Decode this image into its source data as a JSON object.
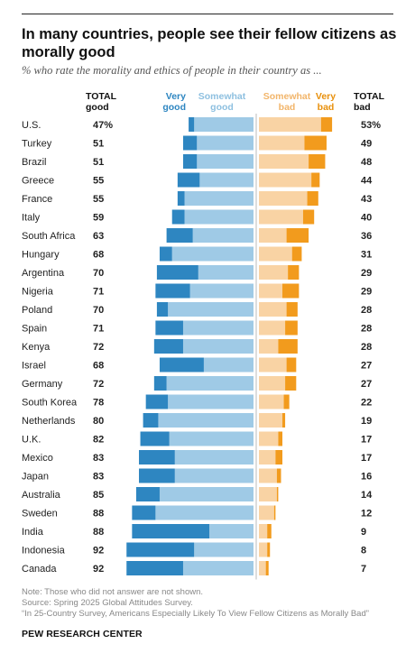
{
  "title": "In many countries, people see their fellow citizens as morally good",
  "subtitle": "% who rate the morality and ethics of people in their country as ...",
  "headers": {
    "total_good": [
      "TOTAL",
      "good"
    ],
    "very_good": [
      "Very",
      "good"
    ],
    "somewhat_good": [
      "Somewhat",
      "good"
    ],
    "somewhat_bad": [
      "Somewhat",
      "bad"
    ],
    "very_bad": [
      "Very",
      "bad"
    ],
    "total_bad": [
      "TOTAL",
      "bad"
    ]
  },
  "colors": {
    "very_good": "#2e86c1",
    "somewhat_good": "#9fcae6",
    "somewhat_bad": "#f9d3a4",
    "very_bad": "#f29b1d",
    "very_good_text": "#2e86c1",
    "somewhat_good_text": "#8ec0e0",
    "somewhat_bad_text": "#f2b56a",
    "very_bad_text": "#e8900c"
  },
  "chart_data": {
    "type": "bar",
    "orientation": "horizontal-diverging",
    "categories": [
      "U.S.",
      "Turkey",
      "Brazil",
      "Greece",
      "France",
      "Italy",
      "South Africa",
      "Hungary",
      "Argentina",
      "Nigeria",
      "Poland",
      "Spain",
      "Kenya",
      "Israel",
      "Germany",
      "South Korea",
      "Netherlands",
      "U.K.",
      "Mexico",
      "Japan",
      "Australia",
      "Sweden",
      "India",
      "Indonesia",
      "Canada"
    ],
    "total_good_labels": [
      "47%",
      "51",
      "51",
      "55",
      "55",
      "59",
      "63",
      "68",
      "70",
      "71",
      "70",
      "71",
      "72",
      "68",
      "72",
      "78",
      "80",
      "82",
      "83",
      "83",
      "85",
      "88",
      "88",
      "92",
      "92"
    ],
    "total_bad_labels": [
      "53%",
      "49",
      "48",
      "44",
      "43",
      "40",
      "36",
      "31",
      "29",
      "29",
      "28",
      "28",
      "28",
      "27",
      "27",
      "22",
      "19",
      "17",
      "17",
      "16",
      "14",
      "12",
      "9",
      "8",
      "7"
    ],
    "series": [
      {
        "name": "Very good",
        "values": [
          4,
          10,
          10,
          16,
          5,
          9,
          19,
          9,
          30,
          25,
          8,
          20,
          21,
          32,
          9,
          16,
          11,
          21,
          26,
          26,
          17,
          17,
          56,
          49,
          41
        ]
      },
      {
        "name": "Somewhat good",
        "values": [
          43,
          41,
          41,
          39,
          50,
          50,
          44,
          59,
          40,
          46,
          62,
          51,
          51,
          36,
          63,
          62,
          69,
          61,
          57,
          57,
          68,
          71,
          32,
          43,
          51
        ]
      },
      {
        "name": "Somewhat bad",
        "values": [
          45,
          33,
          36,
          38,
          35,
          32,
          20,
          24,
          21,
          17,
          20,
          19,
          14,
          20,
          19,
          18,
          17,
          14,
          12,
          13,
          13,
          11,
          6,
          6,
          5
        ]
      },
      {
        "name": "Very bad",
        "values": [
          8,
          16,
          12,
          6,
          8,
          8,
          16,
          7,
          8,
          12,
          8,
          9,
          14,
          7,
          8,
          4,
          2,
          3,
          5,
          3,
          1,
          1,
          3,
          2,
          2
        ]
      }
    ]
  },
  "footer": {
    "note": "Note: Those who did not answer are not shown.",
    "source": "Source: Spring 2025 Global Attitudes Survey.",
    "report": "“In 25-Country Survey, Americans Especially Likely To View Fellow Citizens as Morally Bad”",
    "brand": "PEW RESEARCH CENTER"
  }
}
